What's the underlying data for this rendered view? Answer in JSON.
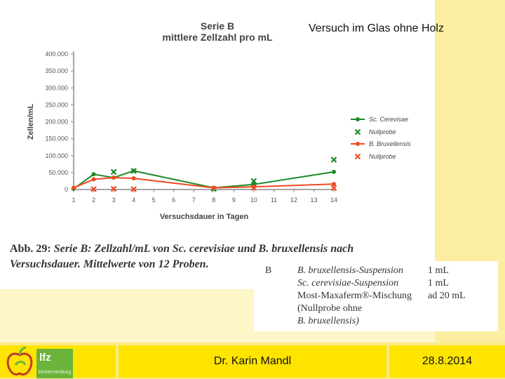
{
  "slide_title": "Versuch im Glas ohne Holz",
  "footer": {
    "author": "Dr. Karin Mandl",
    "date": "28.8.2014",
    "logo_text": "lfz",
    "logo_sub": "klosterneuburg"
  },
  "caption": {
    "lead": "Abb. 29:",
    "text": "Serie B: Zellzahl/mL von Sc. cerevisiae und B. bruxellensis nach Versuchsdauer. Mittelwerte von 12 Proben."
  },
  "composition": {
    "label": "B",
    "rows": [
      {
        "desc": "B. bruxellensis-Suspension",
        "amount": "1 mL"
      },
      {
        "desc": "Sc. cerevisiae-Suspension",
        "amount": "1 mL"
      },
      {
        "desc": "Most-Maxaferm®-Mischung",
        "amount": "ad 20 mL"
      },
      {
        "desc": "(Nullprobe ohne",
        "amount": ""
      },
      {
        "desc": "B. bruxellensis)",
        "amount": ""
      }
    ]
  },
  "colors": {
    "green": "#1e8a2a",
    "red": "#f04a24",
    "axis": "#888888"
  },
  "chart_data": {
    "type": "line",
    "title": "Serie B",
    "subtitle": "mittlere Zellzahl pro mL",
    "xlabel": "Versuchsdauer in Tagen",
    "ylabel": "Zellen/mL",
    "x_ticks": [
      "1",
      "2",
      "3",
      "4",
      "5",
      "6",
      "7",
      "8",
      "9",
      "10",
      "11",
      "12",
      "13",
      "14"
    ],
    "y_ticks": [
      "0",
      "50.000",
      "100.000",
      "150.000",
      "200.000",
      "250.000",
      "300.000",
      "350.000",
      "400.000"
    ],
    "xlim": [
      1,
      14
    ],
    "ylim": [
      0,
      400000
    ],
    "legend_position": "right",
    "series": [
      {
        "name": "Sc. Cerevisae",
        "style": "line",
        "color": "#1e8a2a",
        "x": [
          1,
          2,
          3,
          4,
          8,
          10,
          14
        ],
        "y": [
          2000,
          45000,
          35000,
          55000,
          5000,
          15000,
          52000
        ]
      },
      {
        "name": "Nullprobe",
        "style": "marker",
        "color": "#1e8a2a",
        "x": [
          3,
          4,
          8,
          10,
          14
        ],
        "y": [
          52000,
          55000,
          2000,
          25000,
          88000
        ]
      },
      {
        "name": "B. Bruxellensis",
        "style": "line",
        "color": "#f04a24",
        "x": [
          1,
          2,
          3,
          4,
          8,
          10,
          14
        ],
        "y": [
          5000,
          30000,
          35000,
          33000,
          5000,
          8000,
          16000
        ]
      },
      {
        "name": "Nullprobe",
        "style": "marker",
        "color": "#f04a24",
        "x": [
          2,
          3,
          4,
          10,
          14
        ],
        "y": [
          1000,
          2000,
          1000,
          5000,
          4000
        ]
      }
    ]
  }
}
